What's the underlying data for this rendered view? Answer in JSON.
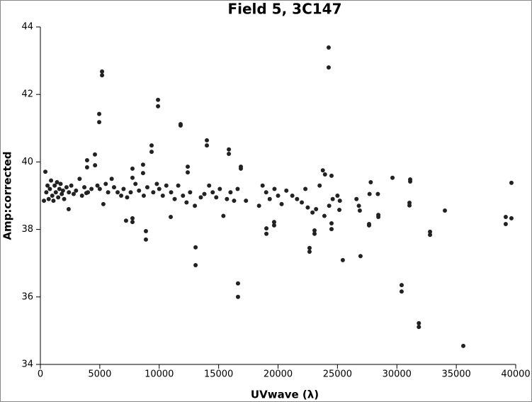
{
  "chart_data": {
    "type": "scatter",
    "title": "Field 5, 3C147",
    "xlabel": "UVwave (λ)",
    "ylabel": "Amp:corrected",
    "color": "#222222",
    "xlim": [
      0,
      40000
    ],
    "xticks": [
      0,
      5000,
      10000,
      15000,
      20000,
      25000,
      30000,
      35000,
      40000
    ],
    "ylim": [
      34,
      44
    ],
    "yticks": [
      34,
      36,
      38,
      40,
      42,
      44
    ],
    "x": [
      24260,
      24260,
      5190,
      5190,
      4950,
      4950,
      9900,
      9900,
      11800,
      11800,
      9360,
      9360,
      14010,
      14010,
      15860,
      15860,
      16870,
      16870,
      12400,
      12400,
      3930,
      3930,
      4590,
      7750,
      7750,
      8640,
      8640,
      420,
      23770,
      23950,
      24500,
      29630,
      31120,
      31120,
      39640,
      39160,
      39160,
      39640,
      34040,
      32790,
      32790,
      30400,
      30400,
      31850,
      31850,
      35590,
      16630,
      16630,
      13060,
      13060,
      8880,
      8880,
      7210,
      7750,
      7750,
      10970,
      19020,
      19020,
      19670,
      19670,
      22650,
      22650,
      23070,
      23070,
      24500,
      24500,
      25450,
      26940,
      27660,
      27660,
      28440,
      28440,
      25160,
      26880,
      31060,
      31060,
      2380,
      3870,
      300,
      500,
      600,
      700,
      800,
      900,
      1000,
      1100,
      1200,
      1300,
      1400,
      1500,
      1600,
      1700,
      1800,
      1900,
      2000,
      2200,
      2400,
      2600,
      2800,
      3000,
      3300,
      3500,
      3700,
      4000,
      4300,
      4600,
      4800,
      5000,
      5300,
      5500,
      5700,
      6000,
      6200,
      6500,
      6800,
      7000,
      7300,
      7600,
      8000,
      8300,
      8700,
      9000,
      9500,
      9800,
      10000,
      10300,
      10600,
      11000,
      11300,
      11600,
      12000,
      12300,
      12600,
      13000,
      13500,
      13800,
      14200,
      14500,
      14800,
      15100,
      15400,
      15700,
      16000,
      16300,
      16600,
      17300,
      18400,
      18700,
      19000,
      19300,
      19700,
      20000,
      20300,
      20700,
      21200,
      21600,
      22000,
      22300,
      22500,
      22900,
      23200,
      23500,
      23900,
      24300,
      24600,
      25000,
      25200,
      26600,
      26800,
      27700,
      27800,
      28400
    ],
    "y": [
      43.39,
      42.8,
      42.68,
      42.57,
      41.42,
      41.18,
      41.84,
      41.65,
      41.12,
      41.08,
      40.49,
      40.3,
      40.64,
      40.49,
      40.37,
      40.24,
      39.86,
      39.8,
      39.86,
      39.69,
      40.05,
      39.84,
      40.22,
      39.8,
      39.53,
      39.92,
      39.67,
      39.71,
      39.75,
      39.63,
      39.59,
      39.53,
      39.48,
      39.42,
      39.38,
      38.37,
      38.16,
      38.33,
      38.56,
      37.93,
      37.84,
      36.35,
      36.16,
      35.22,
      35.11,
      34.55,
      36.4,
      36.0,
      37.47,
      36.94,
      37.95,
      37.7,
      38.26,
      38.22,
      38.33,
      38.37,
      38.03,
      37.87,
      38.22,
      38.12,
      37.45,
      37.34,
      37.97,
      37.87,
      38.01,
      38.18,
      37.09,
      37.21,
      38.16,
      38.12,
      38.43,
      38.37,
      38.58,
      38.56,
      38.79,
      38.71,
      38.6,
      39.08,
      38.85,
      39.1,
      39.3,
      38.9,
      39.2,
      39.45,
      39.0,
      38.85,
      39.3,
      39.1,
      39.4,
      38.95,
      39.2,
      39.35,
      39.05,
      39.15,
      38.9,
      39.25,
      39.1,
      39.3,
      39.05,
      39.15,
      39.5,
      39.0,
      39.25,
      39.1,
      39.2,
      39.9,
      39.3,
      39.2,
      38.75,
      39.35,
      39.1,
      39.5,
      39.25,
      39.1,
      39.0,
      39.2,
      38.95,
      39.1,
      39.35,
      39.15,
      39.0,
      39.25,
      39.1,
      39.35,
      39.2,
      39.0,
      39.3,
      39.1,
      38.9,
      39.3,
      39.0,
      38.8,
      39.1,
      38.7,
      38.95,
      39.05,
      39.3,
      39.1,
      38.95,
      39.2,
      38.4,
      38.9,
      39.1,
      38.85,
      39.2,
      38.85,
      38.7,
      39.3,
      39.1,
      38.9,
      39.2,
      39.0,
      38.75,
      39.15,
      39.0,
      38.9,
      38.8,
      39.2,
      38.65,
      38.5,
      38.6,
      39.3,
      38.4,
      38.7,
      38.9,
      39.0,
      38.85,
      38.9,
      38.7,
      39.05,
      39.4,
      39.05
    ]
  }
}
